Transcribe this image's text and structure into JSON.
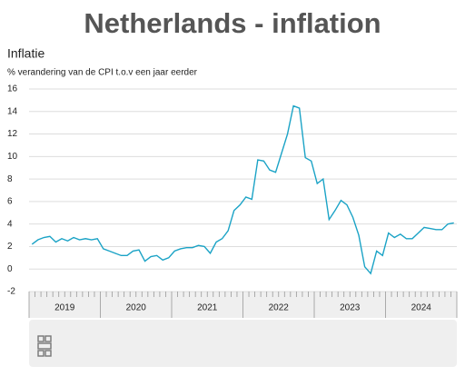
{
  "chart_data": {
    "type": "line",
    "title": "Netherlands - inflation",
    "subtitle": "Inflatie",
    "y_label": "% verandering van de CPI t.o.v een jaar eerder",
    "categories": [
      "2019",
      "2019",
      "2019",
      "2019",
      "2019",
      "2019",
      "2019",
      "2019",
      "2019",
      "2019",
      "2019",
      "2019",
      "2020",
      "2020",
      "2020",
      "2020",
      "2020",
      "2020",
      "2020",
      "2020",
      "2020",
      "2020",
      "2020",
      "2020",
      "2021",
      "2021",
      "2021",
      "2021",
      "2021",
      "2021",
      "2021",
      "2021",
      "2021",
      "2021",
      "2021",
      "2021",
      "2022",
      "2022",
      "2022",
      "2022",
      "2022",
      "2022",
      "2022",
      "2022",
      "2022",
      "2022",
      "2022",
      "2022",
      "2023",
      "2023",
      "2023",
      "2023",
      "2023",
      "2023",
      "2023",
      "2023",
      "2023",
      "2023",
      "2023",
      "2023",
      "2024",
      "2024",
      "2024",
      "2024",
      "2024",
      "2024",
      "2024",
      "2024",
      "2024",
      "2024",
      "2024",
      "2024"
    ],
    "values": [
      2.2,
      2.6,
      2.8,
      2.9,
      2.4,
      2.7,
      2.5,
      2.8,
      2.6,
      2.7,
      2.6,
      2.7,
      1.8,
      1.6,
      1.4,
      1.2,
      1.2,
      1.6,
      1.7,
      0.7,
      1.1,
      1.2,
      0.8,
      1.0,
      1.6,
      1.8,
      1.9,
      1.9,
      2.1,
      2.0,
      1.4,
      2.4,
      2.7,
      3.4,
      5.2,
      5.7,
      6.4,
      6.2,
      9.7,
      9.6,
      8.8,
      8.6,
      10.3,
      12.0,
      14.5,
      14.3,
      9.9,
      9.6,
      7.6,
      8.0,
      4.4,
      5.2,
      6.1,
      5.7,
      4.6,
      3.0,
      0.2,
      -0.4,
      1.6,
      1.2,
      3.2,
      2.8,
      3.1,
      2.7,
      2.7,
      3.2,
      3.7,
      3.6,
      3.5,
      3.5,
      4.0,
      4.1
    ],
    "color": "#1ba3c6",
    "ylim": [
      -2,
      16
    ],
    "yticks": [
      -2,
      0,
      2,
      4,
      6,
      8,
      10,
      12,
      14,
      16
    ],
    "grid": true
  }
}
